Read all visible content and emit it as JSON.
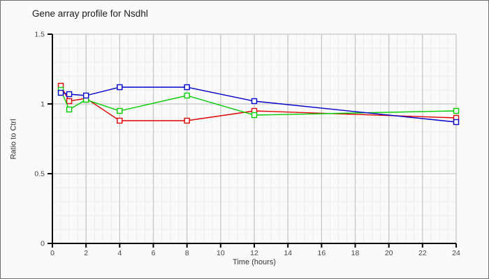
{
  "chart_data": {
    "type": "line",
    "title": "Gene array profile for Nsdhl",
    "xlabel": "Time (hours)",
    "ylabel": "Ratio to Ctrl",
    "xlim": [
      0,
      24
    ],
    "ylim": [
      0,
      1.5
    ],
    "x_tick_values": [
      0,
      2,
      4,
      6,
      8,
      10,
      12,
      14,
      16,
      18,
      20,
      22,
      24
    ],
    "x_tick_labels": [
      "0",
      "2",
      "4",
      "6",
      "8",
      "10",
      "12",
      "14",
      "16",
      "18",
      "20",
      "22",
      "24"
    ],
    "y_tick_values": [
      0,
      0.5,
      1,
      1.5
    ],
    "y_tick_labels": [
      "0",
      "0.5",
      "1",
      "1.5"
    ],
    "x_minor_step": 0.5,
    "y_minor_step": 0.1,
    "grid": {
      "major_color": "#c6c6c6",
      "minor_color": "#ececec",
      "on": true
    },
    "axis_color": "#000000",
    "tick_label_color": "#444444",
    "marker": "open-square",
    "legend": "none",
    "x": [
      0.5,
      1,
      2,
      4,
      8,
      12,
      24
    ],
    "series": [
      {
        "name": "red-series",
        "color": "#e00000",
        "values": [
          1.13,
          1.02,
          1.04,
          0.88,
          0.88,
          0.95,
          0.9
        ]
      },
      {
        "name": "green-series",
        "color": "#00cc00",
        "values": [
          1.1,
          0.96,
          1.03,
          0.95,
          1.06,
          0.92,
          0.95
        ]
      },
      {
        "name": "blue-series",
        "color": "#0000cc",
        "values": [
          1.08,
          1.07,
          1.06,
          1.12,
          1.12,
          1.02,
          0.87
        ]
      }
    ]
  }
}
